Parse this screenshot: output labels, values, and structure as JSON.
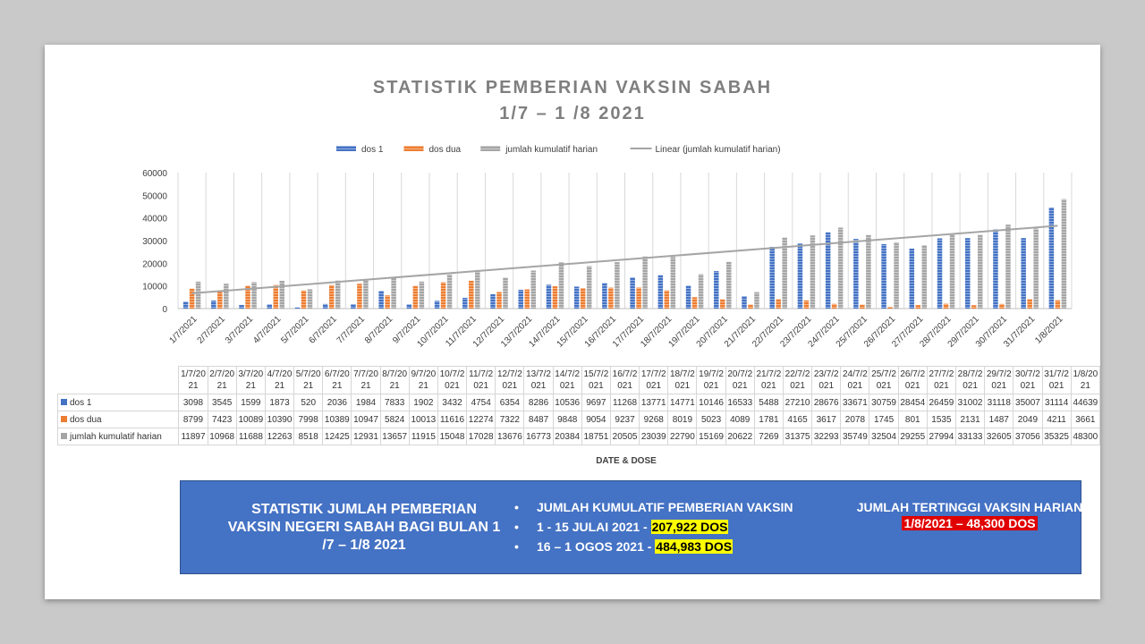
{
  "chart_data": {
    "type": "bar",
    "title": "STATISTIK PEMBERIAN VAKSIN SABAH",
    "subtitle": "1/7 – 1 /8 2021",
    "xlabel": "DATE & DOSE",
    "ylabel": "",
    "ylim": [
      0,
      60000
    ],
    "yticks": [
      "0",
      "10000",
      "20000",
      "30000",
      "40000",
      "50000",
      "60000"
    ],
    "grid": "vertical",
    "legend_position": "top",
    "categories": [
      "1/7/2021",
      "2/7/2021",
      "3/7/2021",
      "4/7/2021",
      "5/7/2021",
      "6/7/2021",
      "7/7/2021",
      "8/7/2021",
      "9/7/2021",
      "10/7/2021",
      "11/7/2021",
      "12/7/2021",
      "13/7/2021",
      "14/7/2021",
      "15/7/2021",
      "16/7/2021",
      "17/7/2021",
      "18/7/2021",
      "19/7/2021",
      "20/7/2021",
      "21/7/2021",
      "22/7/2021",
      "23/7/2021",
      "24/7/2021",
      "25/7/2021",
      "26/7/2021",
      "27/7/2021",
      "28/7/2021",
      "29/7/2021",
      "30/7/2021",
      "31/7/2021",
      "1/8/2021"
    ],
    "table_headers": [
      "1/7/2021",
      "2/7/2021",
      "3/7/2021",
      "4/7/2021",
      "5/7/2021",
      "6/7/2021",
      "7/7/2021",
      "8/7/2021",
      "9/7/2021",
      "10/7/2021",
      "11/7/2021",
      "12/7/2021",
      "13/7/2021",
      "14/7/2021",
      "15/7/2021",
      "16/7/2021",
      "17/7/2021",
      "18/7/2021",
      "19/7/2021",
      "20/7/2021",
      "21/7/2021",
      "22/7/2021",
      "23/7/2021",
      "24/7/2021",
      "25/7/2021",
      "26/7/2021",
      "27/7/2021",
      "28/7/2021",
      "29/7/2021",
      "30/7/2021",
      "31/7/2021",
      "1/8/2021"
    ],
    "series": [
      {
        "name": "dos 1",
        "color": "#4472c4",
        "values": [
          3098,
          3545,
          1599,
          1873,
          520,
          2036,
          1984,
          7833,
          1902,
          3432,
          4754,
          6354,
          8286,
          10536,
          9697,
          11268,
          13771,
          14771,
          10146,
          16533,
          5488,
          27210,
          28676,
          33671,
          30759,
          28454,
          26459,
          31002,
          31118,
          35007,
          31114,
          44639
        ]
      },
      {
        "name": "dos dua",
        "color": "#ed7d31",
        "values": [
          8799,
          7423,
          10089,
          10390,
          7998,
          10389,
          10947,
          5824,
          10013,
          11616,
          12274,
          7322,
          8487,
          9848,
          9054,
          9237,
          9268,
          8019,
          5023,
          4089,
          1781,
          4165,
          3617,
          2078,
          1745,
          801,
          1535,
          2131,
          1487,
          2049,
          4211,
          3661
        ]
      },
      {
        "name": "jumlah kumulatif harian",
        "color": "#a5a5a5",
        "values": [
          11897,
          10968,
          11688,
          12263,
          8518,
          12425,
          12931,
          13657,
          11915,
          15048,
          17028,
          13676,
          16773,
          20384,
          18751,
          20505,
          23039,
          22790,
          15169,
          20622,
          7269,
          31375,
          32293,
          35749,
          32504,
          29255,
          27994,
          33133,
          32605,
          37056,
          35325,
          48300
        ]
      }
    ],
    "trendline": {
      "name": "Linear (jumlah kumulatif harian)",
      "color": "#a5a5a5",
      "type": "linear"
    }
  },
  "summary": {
    "left_text": "STATISTIK JUMLAH PEMBERIAN VAKSIN NEGERI SABAH BAGI BULAN 1 /7 – 1/8  2021",
    "middle_heading": "JUMLAH KUMULATIF PEMBERIAN VAKSIN",
    "bullet": "•",
    "items": [
      {
        "label": "1 - 15 JULAI 2021  -",
        "value": "207,922 DOS"
      },
      {
        "label": "16 – 1 OGOS 2021  -",
        "value": "484,983 DOS"
      }
    ],
    "right_heading": "JUMLAH TERTINGGI VAKSIN HARIAN",
    "right_value": "1/8/2021 – 48,300 DOS"
  }
}
